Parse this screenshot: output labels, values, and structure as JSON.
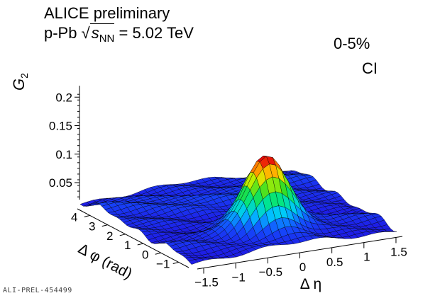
{
  "experiment": {
    "line1": "ALICE preliminary",
    "system": "p-Pb",
    "energy_var": "s",
    "energy_sub": "NN",
    "energy_value": "= 5.02 TeV"
  },
  "centrality": "0-5%",
  "charge_combination": "CI",
  "preliminary_tag": "ALI-PREL-454499",
  "chart_data": {
    "type": "surface",
    "title": "",
    "zlabel": "G2",
    "zlabel_main": "G",
    "zlabel_sub": "2",
    "xlabel": "Δ η",
    "ylabel": "Δ φ (rad)",
    "x_range": [
      -1.6,
      1.6
    ],
    "y_range": [
      -1.57,
      4.71
    ],
    "z_range": [
      0.02,
      0.22
    ],
    "x_ticks": [
      -1.5,
      -1,
      -0.5,
      0,
      0.5,
      1,
      1.5
    ],
    "x_tick_labels": [
      "−1.5",
      "−1",
      "−0.5",
      "0",
      "0.5",
      "1",
      "1.5"
    ],
    "y_ticks": [
      -1,
      0,
      1,
      2,
      3,
      4
    ],
    "y_tick_labels": [
      "−1",
      "0",
      "1",
      "2",
      "3",
      "4"
    ],
    "z_ticks": [
      0.05,
      0.1,
      0.15,
      0.2
    ],
    "z_tick_labels": [
      "0.05",
      "0.1",
      "0.15",
      "0.2"
    ],
    "peak": {
      "x": 0,
      "y": 0,
      "z": 0.155
    },
    "baseline": 0.03,
    "away_side": {
      "y": 3.14,
      "z": 0.042
    },
    "color_scale": "rainbow"
  }
}
